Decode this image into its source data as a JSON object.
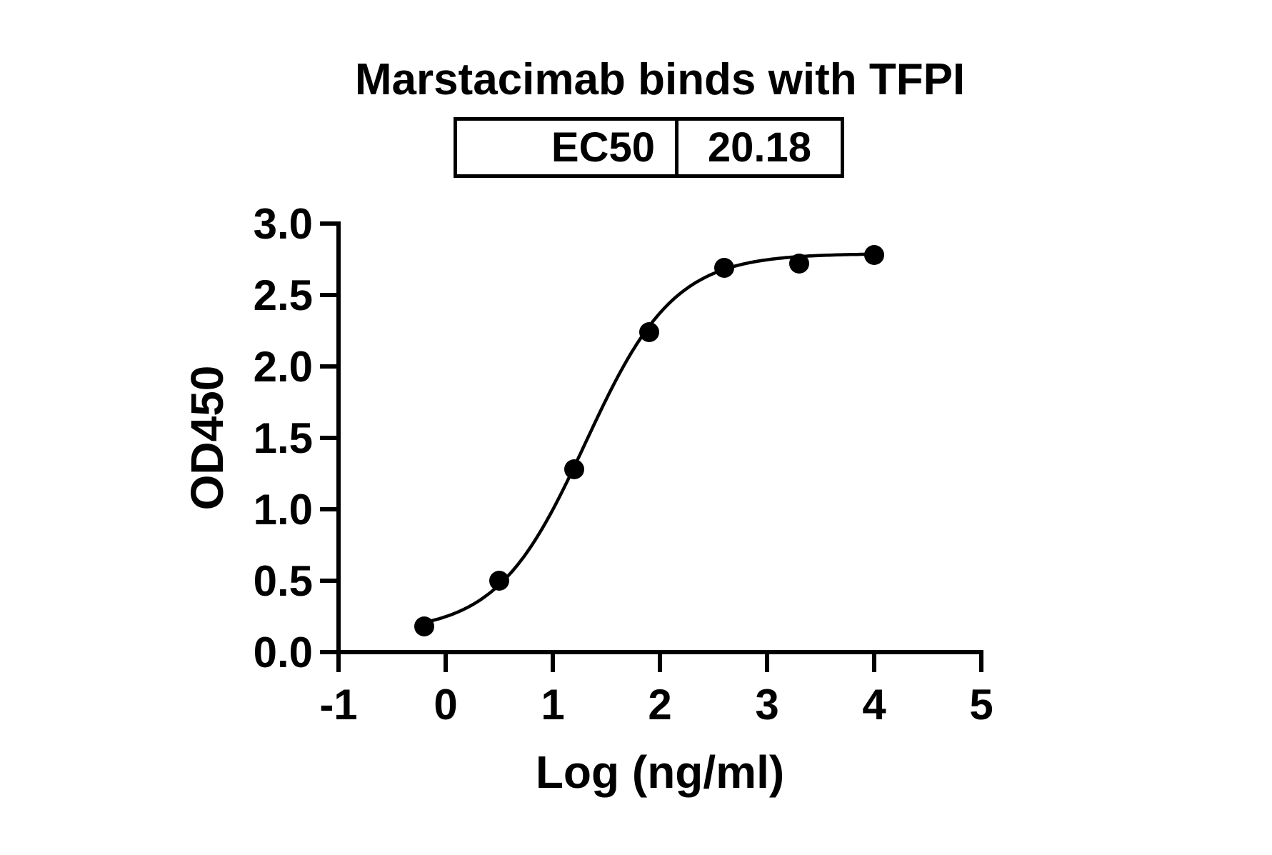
{
  "figure": {
    "background_color": "#ffffff",
    "ink_color": "#000000"
  },
  "ec50_table": {
    "label": "EC50",
    "value": "20.18"
  },
  "chart_data": {
    "type": "scatter",
    "title": "Marstacimab binds with TFPI",
    "xlabel": "Log (ng/ml)",
    "ylabel": "OD450",
    "xlim": [
      -1,
      5
    ],
    "ylim": [
      0,
      3
    ],
    "x_ticks": [
      -1,
      0,
      1,
      2,
      3,
      4,
      5
    ],
    "x_tick_labels": [
      "-1",
      "0",
      "1",
      "2",
      "3",
      "4",
      "5"
    ],
    "y_ticks": [
      0,
      0.5,
      1,
      1.5,
      2,
      2.5,
      3
    ],
    "y_tick_labels": [
      "0.0",
      "0.5",
      "1.0",
      "1.5",
      "2.0",
      "2.5",
      "3.0"
    ],
    "grid": false,
    "legend": "none",
    "marker_color": "#000000",
    "curve_color": "#000000",
    "points": [
      {
        "x": -0.2,
        "y": 0.18
      },
      {
        "x": 0.5,
        "y": 0.5
      },
      {
        "x": 1.2,
        "y": 1.28
      },
      {
        "x": 1.9,
        "y": 2.24
      },
      {
        "x": 2.6,
        "y": 2.69
      },
      {
        "x": 3.3,
        "y": 2.72
      },
      {
        "x": 4.0,
        "y": 2.78
      }
    ],
    "fit_curve": {
      "model": "4PL sigmoid",
      "bottom": 0.14,
      "top": 2.79,
      "log_ec50": 1.305,
      "hill_slope": 1.05,
      "x_start": -0.2,
      "x_end": 4.0
    },
    "ec50_value": "20.18"
  }
}
